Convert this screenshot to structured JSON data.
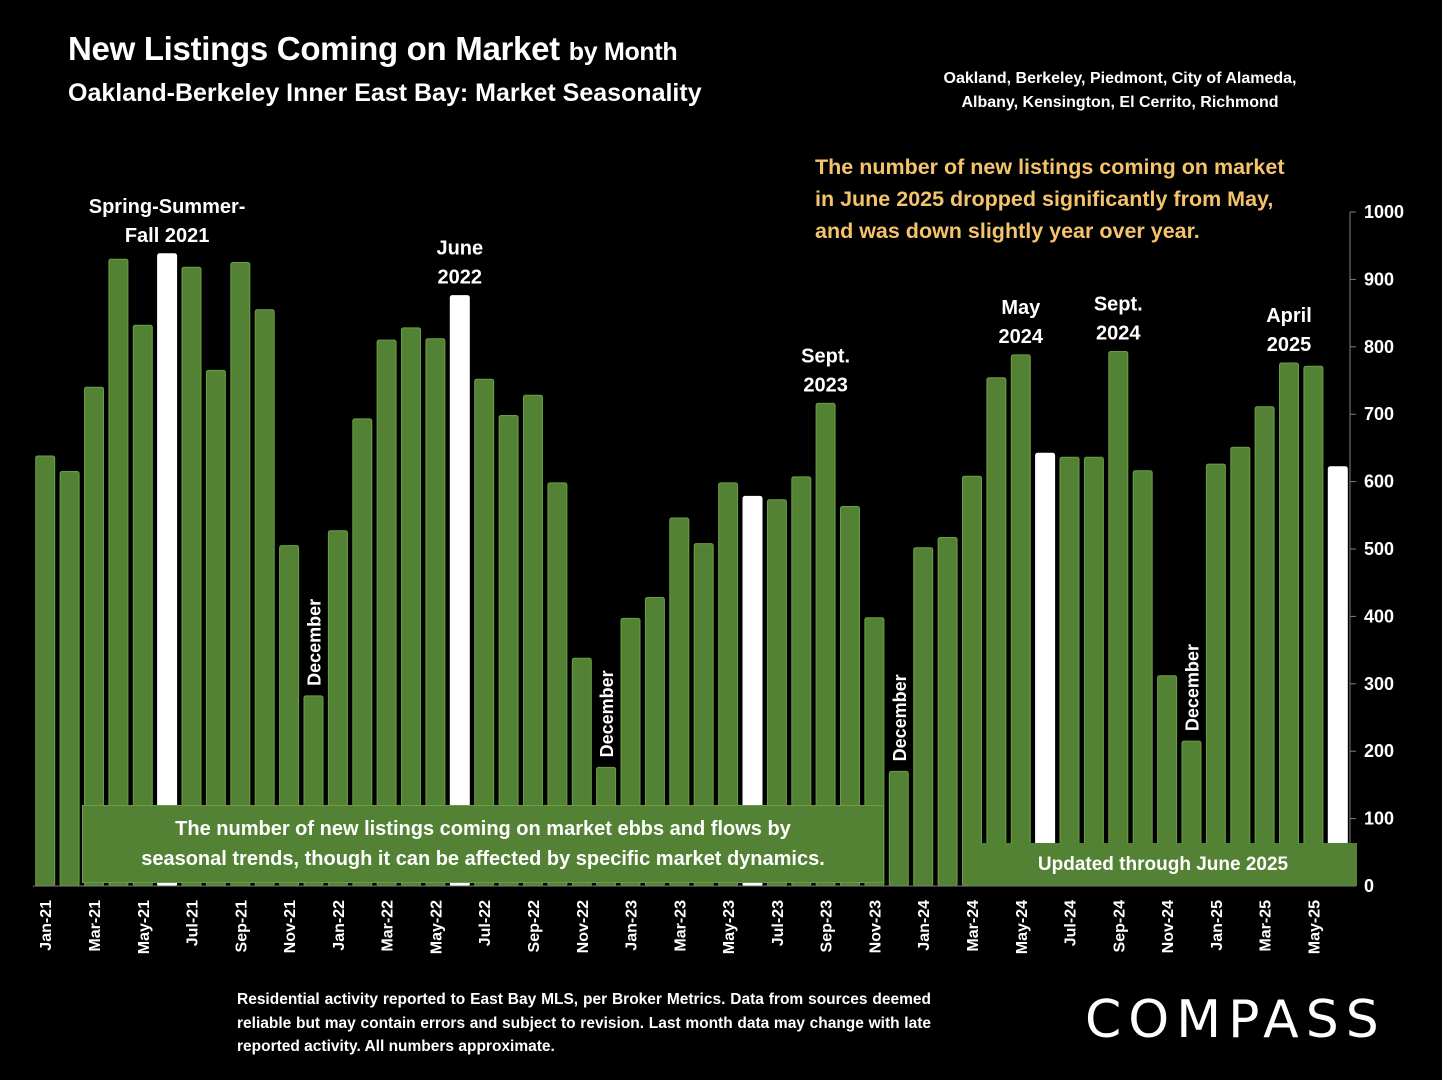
{
  "header": {
    "title_main": "New Listings Coming on Market",
    "title_suffix": "by Month",
    "subtitle": "Oakland-Berkeley Inner East Bay: Market Seasonality",
    "region": "Oakland, Berkeley, Piedmont, City of Alameda,\nAlbany, Kensington, El Cerrito, Richmond",
    "headline": "The number of new listings coming on market\nin June 2025 dropped significantly from May,\nand was down slightly year over year."
  },
  "note_box": "The number of new listings coming on market ebbs and flows by\nseasonal trends, though it can be affected by specific market dynamics.",
  "updated_box": "Updated through June 2025",
  "footer": {
    "source": "Residential activity reported to East Bay MLS, per Broker Metrics. Data from sources deemed reliable but may contain errors and subject to revision. Last month data may change with late reported activity. All numbers approximate.",
    "brand": "COMPASS"
  },
  "colors": {
    "background": "#000000",
    "bar_green": "#548235",
    "bar_highlight": "#ffffff",
    "headline": "#f4c36b",
    "axis": "#7f7f7f"
  },
  "chart_data": {
    "type": "bar",
    "title": "New Listings Coming on Market by Month",
    "ylim": [
      0,
      1000
    ],
    "y_ticks": [
      0,
      100,
      200,
      300,
      400,
      500,
      600,
      700,
      800,
      900,
      1000
    ],
    "y_axis_position": "right",
    "grid": false,
    "categories": [
      "Jan-21",
      "Feb-21",
      "Mar-21",
      "Apr-21",
      "May-21",
      "Jun-21",
      "Jul-21",
      "Aug-21",
      "Sep-21",
      "Oct-21",
      "Nov-21",
      "Dec-21",
      "Jan-22",
      "Feb-22",
      "Mar-22",
      "Apr-22",
      "May-22",
      "Jun-22",
      "Jul-22",
      "Aug-22",
      "Sep-22",
      "Oct-22",
      "Nov-22",
      "Dec-22",
      "Jan-23",
      "Feb-23",
      "Mar-23",
      "Apr-23",
      "May-23",
      "Jun-23",
      "Jul-23",
      "Aug-23",
      "Sep-23",
      "Oct-23",
      "Nov-23",
      "Dec-23",
      "Jan-24",
      "Feb-24",
      "Mar-24",
      "Apr-24",
      "May-24",
      "Jun-24",
      "Jul-24",
      "Aug-24",
      "Sep-24",
      "Oct-24",
      "Nov-24",
      "Dec-24",
      "Jan-25",
      "Feb-25",
      "Mar-25",
      "Apr-25",
      "May-25",
      "Jun-25"
    ],
    "x_tick_labels": [
      "Jan-21",
      "",
      "Mar-21",
      "",
      "May-21",
      "",
      "Jul-21",
      "",
      "Sep-21",
      "",
      "Nov-21",
      "",
      "Jan-22",
      "",
      "Mar-22",
      "",
      "May-22",
      "",
      "Jul-22",
      "",
      "Sep-22",
      "",
      "Nov-22",
      "",
      "Jan-23",
      "",
      "Mar-23",
      "",
      "May-23",
      "",
      "Jul-23",
      "",
      "Sep-23",
      "",
      "Nov-23",
      "",
      "Jan-24",
      "",
      "Mar-24",
      "",
      "May-24",
      "",
      "Jul-24",
      "",
      "Sep-24",
      "",
      "Nov-24",
      "",
      "Jan-25",
      "",
      "Mar-25",
      "",
      "May-25",
      ""
    ],
    "values": [
      638,
      615,
      740,
      930,
      832,
      938,
      918,
      765,
      925,
      855,
      505,
      282,
      527,
      693,
      810,
      828,
      812,
      876,
      752,
      698,
      728,
      598,
      338,
      176,
      397,
      428,
      546,
      508,
      598,
      578,
      573,
      607,
      716,
      563,
      398,
      170,
      502,
      517,
      608,
      754,
      788,
      642,
      636,
      636,
      793,
      616,
      312,
      215,
      626,
      651,
      711,
      776,
      771,
      622
    ],
    "highlight_indices": [
      5,
      17,
      29,
      41,
      53
    ],
    "annotations": [
      {
        "index": 5,
        "text": "Spring-Summer-\nFall  2021",
        "vertical": false
      },
      {
        "index": 17,
        "text": "June\n2022",
        "vertical": false
      },
      {
        "index": 11,
        "text": "December",
        "vertical": true
      },
      {
        "index": 23,
        "text": "December",
        "vertical": true
      },
      {
        "index": 32,
        "text": "Sept.\n2023",
        "vertical": false
      },
      {
        "index": 35,
        "text": "December",
        "vertical": true
      },
      {
        "index": 40,
        "text": "May\n2024",
        "vertical": false
      },
      {
        "index": 44,
        "text": "Sept.\n2024",
        "vertical": false
      },
      {
        "index": 47,
        "text": "December",
        "vertical": true
      },
      {
        "index": 51,
        "text": "April\n2025",
        "vertical": false
      }
    ]
  }
}
